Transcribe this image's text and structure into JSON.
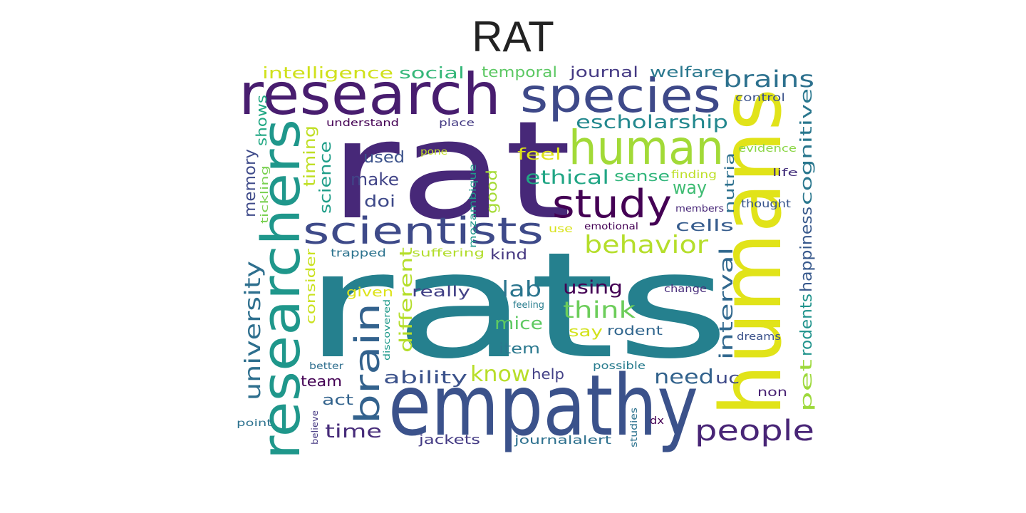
{
  "title": "RAT",
  "words": [
    {
      "text": "rats",
      "color": "#25808e"
    },
    {
      "text": "rat",
      "color": "#472878"
    },
    {
      "text": "humans",
      "color": "#e1e319"
    },
    {
      "text": "empathy",
      "color": "#3b528b"
    },
    {
      "text": "research",
      "color": "#481d6f"
    },
    {
      "text": "researchers",
      "color": "#1f978b"
    },
    {
      "text": "species",
      "color": "#3e4989"
    },
    {
      "text": "human",
      "color": "#a2da37"
    },
    {
      "text": "scientists",
      "color": "#3e4a89"
    },
    {
      "text": "study",
      "color": "#440154"
    },
    {
      "text": "brain",
      "color": "#33628d"
    },
    {
      "text": "people",
      "color": "#482576"
    },
    {
      "text": "behavior",
      "color": "#b5de2b"
    },
    {
      "text": "university",
      "color": "#2e6f8e"
    },
    {
      "text": "brains",
      "color": "#2d718e"
    },
    {
      "text": "escholarship",
      "color": "#23888e"
    },
    {
      "text": "ethical",
      "color": "#21a685"
    },
    {
      "text": "think",
      "color": "#6ccd5a"
    },
    {
      "text": "know",
      "color": "#b8de29"
    },
    {
      "text": "interval",
      "color": "#31688e"
    },
    {
      "text": "need",
      "color": "#33638d"
    },
    {
      "text": "cognitive",
      "color": "#2a778e"
    },
    {
      "text": "happiness",
      "color": "#38598c"
    },
    {
      "text": "rodents",
      "color": "#20938c"
    },
    {
      "text": "pet",
      "color": "#9dd93b"
    },
    {
      "text": "intelligence",
      "color": "#d0e11c"
    },
    {
      "text": "social",
      "color": "#35b779"
    },
    {
      "text": "temporal",
      "color": "#5cc863"
    },
    {
      "text": "journal",
      "color": "#443983"
    },
    {
      "text": "welfare",
      "color": "#2a788e"
    },
    {
      "text": "control",
      "color": "#3b528b"
    },
    {
      "text": "shows",
      "color": "#22a884"
    },
    {
      "text": "understand",
      "color": "#440154"
    },
    {
      "text": "place",
      "color": "#443a83"
    },
    {
      "text": "timing",
      "color": "#c0df25"
    },
    {
      "text": "feel",
      "color": "#dde318"
    },
    {
      "text": "evidence",
      "color": "#8bd646"
    },
    {
      "text": "memory",
      "color": "#3e4a89"
    },
    {
      "text": "science",
      "color": "#1f9e89"
    },
    {
      "text": "used",
      "color": "#3b528b"
    },
    {
      "text": "make",
      "color": "#414487"
    },
    {
      "text": "sense",
      "color": "#31b57b"
    },
    {
      "text": "finding",
      "color": "#bddf26"
    },
    {
      "text": "nutria",
      "color": "#2d708e"
    },
    {
      "text": "life",
      "color": "#46327e"
    },
    {
      "text": "way",
      "color": "#3fbc73"
    },
    {
      "text": "doi",
      "color": "#3e4989"
    },
    {
      "text": "good",
      "color": "#a5db36"
    },
    {
      "text": "tickling",
      "color": "#7ad151"
    },
    {
      "text": "pone",
      "color": "#c2df23"
    },
    {
      "text": "mozambique",
      "color": "#1f988b"
    },
    {
      "text": "members",
      "color": "#482878"
    },
    {
      "text": "thought",
      "color": "#39568c"
    },
    {
      "text": "cells",
      "color": "#365c8d"
    },
    {
      "text": "use",
      "color": "#d8e219"
    },
    {
      "text": "emotional",
      "color": "#440154"
    },
    {
      "text": "consider",
      "color": "#cae11f"
    },
    {
      "text": "trapped",
      "color": "#2c738e"
    },
    {
      "text": "suffering",
      "color": "#b2dd2d"
    },
    {
      "text": "kind",
      "color": "#453781"
    },
    {
      "text": "given",
      "color": "#dde318"
    },
    {
      "text": "different",
      "color": "#b5de2b"
    },
    {
      "text": "really",
      "color": "#424186"
    },
    {
      "text": "lab",
      "color": "#2b758e"
    },
    {
      "text": "using",
      "color": "#440154"
    },
    {
      "text": "change",
      "color": "#472d7b"
    },
    {
      "text": "mice",
      "color": "#5ec962"
    },
    {
      "text": "feeling",
      "color": "#287d8e"
    },
    {
      "text": "discovered",
      "color": "#1f9a8a"
    },
    {
      "text": "say",
      "color": "#d2e21b"
    },
    {
      "text": "rodent",
      "color": "#31668e"
    },
    {
      "text": "dreams",
      "color": "#3b528b"
    },
    {
      "text": "item",
      "color": "#2a788e"
    },
    {
      "text": "better",
      "color": "#2e6e8e"
    },
    {
      "text": "possible",
      "color": "#287c8e"
    },
    {
      "text": "ability",
      "color": "#3b528b"
    },
    {
      "text": "help",
      "color": "#424086"
    },
    {
      "text": "team",
      "color": "#440154"
    },
    {
      "text": "uc",
      "color": "#3e4a89"
    },
    {
      "text": "act",
      "color": "#33638d"
    },
    {
      "text": "non",
      "color": "#482173"
    },
    {
      "text": "time",
      "color": "#472c7a"
    },
    {
      "text": "dx",
      "color": "#440154"
    },
    {
      "text": "point",
      "color": "#2c718e"
    },
    {
      "text": "believe",
      "color": "#453882"
    },
    {
      "text": "jackets",
      "color": "#443b84"
    },
    {
      "text": "journalalert",
      "color": "#2d708e"
    },
    {
      "text": "studies",
      "color": "#2c728e"
    }
  ]
}
